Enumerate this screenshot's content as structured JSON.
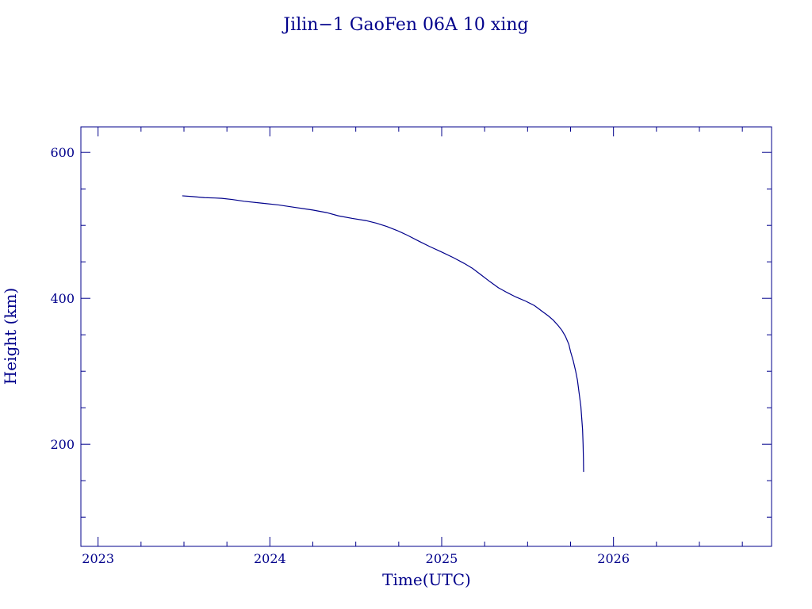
{
  "chart_data": {
    "type": "line",
    "title": "Jilin−1 GaoFen 06A 10 xing",
    "xlabel": "Time(UTC)",
    "ylabel": "Height (km)",
    "xlim": [
      2022.9,
      2026.92
    ],
    "ylim": [
      60,
      635
    ],
    "x_major_ticks": [
      2023,
      2024,
      2025,
      2026
    ],
    "x_tick_labels": [
      "2023",
      "2024",
      "2025",
      "2026"
    ],
    "x_minor_step": 0.25,
    "y_major_ticks": [
      200,
      400,
      600
    ],
    "y_tick_labels": [
      "200",
      "400",
      "600"
    ],
    "y_minor_step": 50,
    "grid": false,
    "color": "#00008b",
    "series": [
      {
        "x": [
          2023.49,
          2023.55,
          2023.62,
          2023.68,
          2023.72,
          2023.78,
          2023.85,
          2023.95,
          2024.05,
          2024.15,
          2024.25,
          2024.33,
          2024.4,
          2024.48,
          2024.56,
          2024.62,
          2024.68,
          2024.74,
          2024.8,
          2024.87,
          2024.93,
          2025.0,
          2025.07,
          2025.13,
          2025.18,
          2025.23,
          2025.28,
          2025.33,
          2025.38,
          2025.43,
          2025.49,
          2025.54,
          2025.58,
          2025.62,
          2025.65,
          2025.68,
          2025.7,
          2025.72,
          2025.74,
          2025.75,
          2025.765,
          2025.78,
          2025.79,
          2025.8,
          2025.81,
          2025.815,
          2025.82,
          2025.823,
          2025.825,
          2025.826
        ],
        "y": [
          540.5,
          539.5,
          538.0,
          537.5,
          537.0,
          535.5,
          533.0,
          530.5,
          528.0,
          524.5,
          521.0,
          517.5,
          513.0,
          509.5,
          506.5,
          503.0,
          498.5,
          493.0,
          486.5,
          478.0,
          471.0,
          463.5,
          455.5,
          448.0,
          441.0,
          432.0,
          423.0,
          414.5,
          408.0,
          402.0,
          396.0,
          390.0,
          383.0,
          376.0,
          370.0,
          362.0,
          356.0,
          348.0,
          337.0,
          327.0,
          315.0,
          300.0,
          288.0,
          270.0,
          252.0,
          236.0,
          220.0,
          200.0,
          180.0,
          162.0
        ]
      }
    ]
  }
}
